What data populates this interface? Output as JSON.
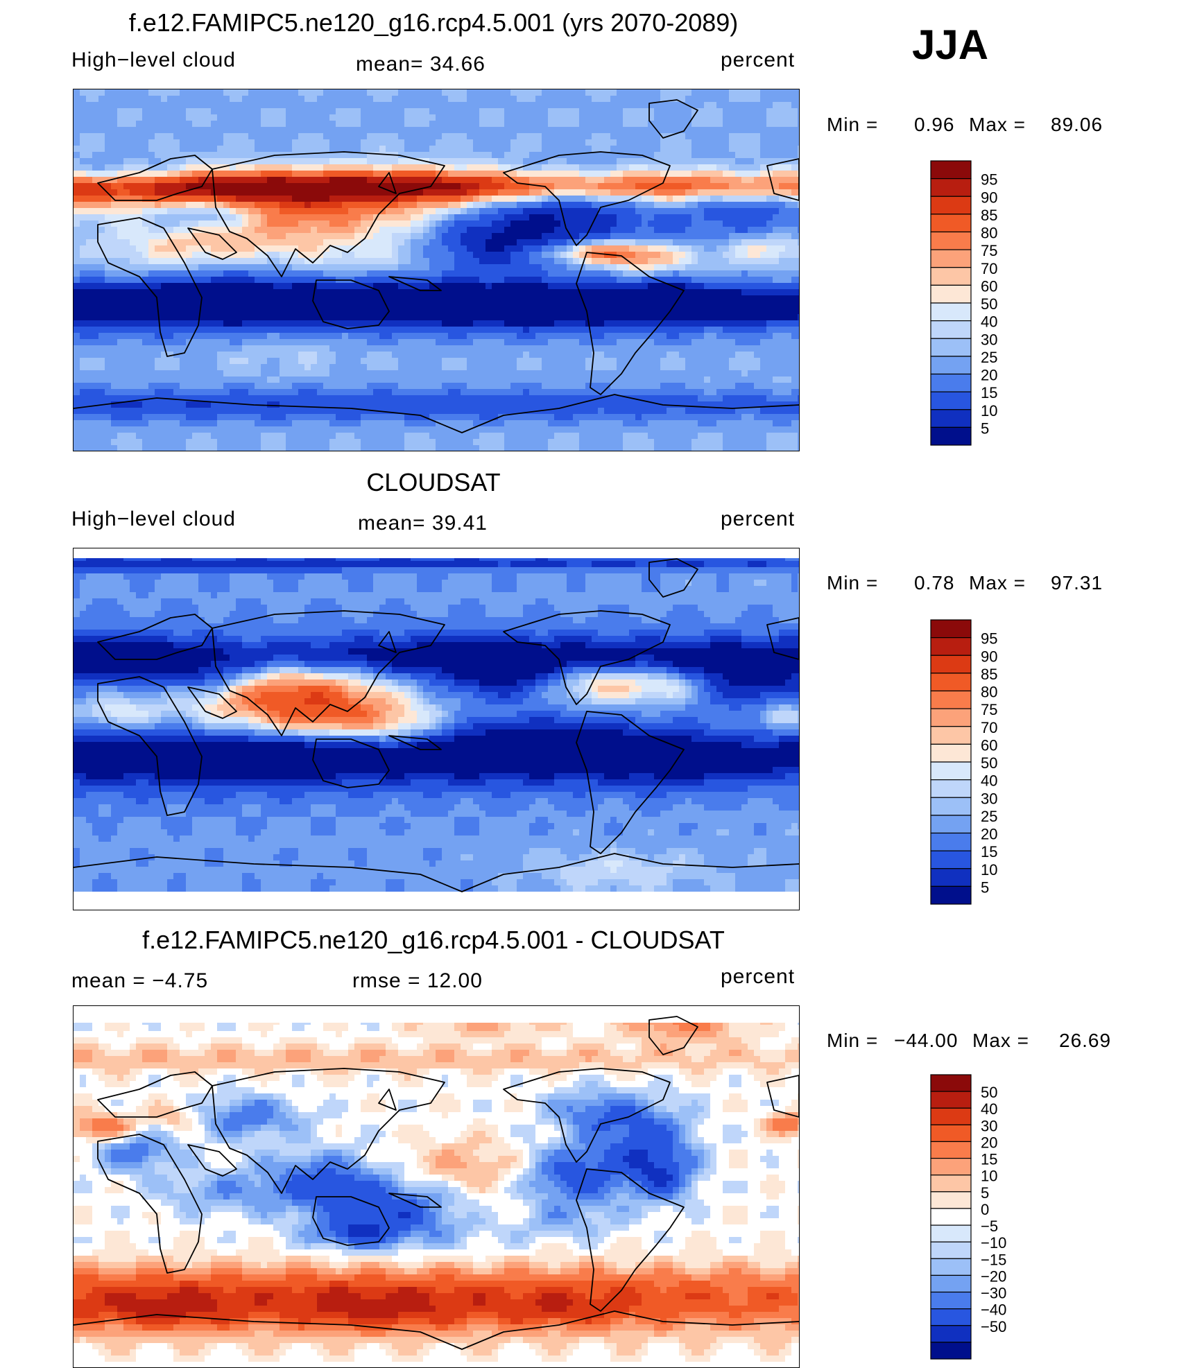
{
  "figure": {
    "season": "JJA",
    "unit_label": "percent"
  },
  "chart_data": [
    {
      "type": "heatmap",
      "title": "f.e12.FAMIPC5.ne120_g16.rcp4.5.001 (yrs 2070-2089)",
      "variable": "High−level cloud",
      "stat_left": "High−level cloud",
      "stat_mid": "mean=   34.66",
      "unit": "percent",
      "mean": 34.66,
      "min_label": "Min  =",
      "min_value": "0.96",
      "max_label": "Max  =",
      "max_value": "89.06",
      "min": 0.96,
      "max": 89.06,
      "colorbar_levels": [
        "95",
        "90",
        "85",
        "80",
        "75",
        "70",
        "60",
        "50",
        "40",
        "30",
        "25",
        "20",
        "15",
        "10",
        "5"
      ],
      "colors": [
        "#8b0a0a",
        "#b81e10",
        "#dc3a14",
        "#f05a26",
        "#f97c4b",
        "#fca27a",
        "#fdc6a6",
        "#fde7d6",
        "#d8e8fb",
        "#bfd6fa",
        "#9cc0f7",
        "#74a2f2",
        "#4a7cec",
        "#2856e0",
        "#1030c0",
        "#000f8c"
      ]
    },
    {
      "type": "heatmap",
      "title": "CLOUDSAT",
      "variable": "High−level cloud",
      "stat_left": "High−level cloud",
      "stat_mid": "mean=   39.41",
      "unit": "percent",
      "mean": 39.41,
      "min_label": "Min  =",
      "min_value": "0.78",
      "max_label": "Max  =",
      "max_value": "97.31",
      "min": 0.78,
      "max": 97.31,
      "colorbar_levels": [
        "95",
        "90",
        "85",
        "80",
        "75",
        "70",
        "60",
        "50",
        "40",
        "30",
        "25",
        "20",
        "15",
        "10",
        "5"
      ],
      "colors": [
        "#8b0a0a",
        "#b81e10",
        "#dc3a14",
        "#f05a26",
        "#f97c4b",
        "#fca27a",
        "#fdc6a6",
        "#fde7d6",
        "#d8e8fb",
        "#bfd6fa",
        "#9cc0f7",
        "#74a2f2",
        "#4a7cec",
        "#2856e0",
        "#1030c0",
        "#000f8c"
      ]
    },
    {
      "type": "heatmap",
      "title": "f.e12.FAMIPC5.ne120_g16.rcp4.5.001 - CLOUDSAT",
      "stat_left": "mean  =    −4.75",
      "stat_mid": "rmse  =    12.00",
      "unit": "percent",
      "mean": -4.75,
      "rmse": 12.0,
      "min_label": "Min  =",
      "min_value": "−44.00",
      "max_label": "Max  =",
      "max_value": "26.69",
      "min": -44.0,
      "max": 26.69,
      "colorbar_levels": [
        "50",
        "40",
        "30",
        "20",
        "15",
        "10",
        "5",
        "0",
        "−5",
        "−10",
        "−15",
        "−20",
        "−30",
        "−40",
        "−50"
      ],
      "colors": [
        "#8b0a0a",
        "#b81e10",
        "#dc3a14",
        "#f05a26",
        "#f97c4b",
        "#fca27a",
        "#fdc6a6",
        "#fde7d6",
        "#ffffff",
        "#d8e8fb",
        "#bfd6fa",
        "#9cc0f7",
        "#74a2f2",
        "#4a7cec",
        "#2856e0",
        "#1030c0",
        "#000f8c"
      ]
    }
  ]
}
